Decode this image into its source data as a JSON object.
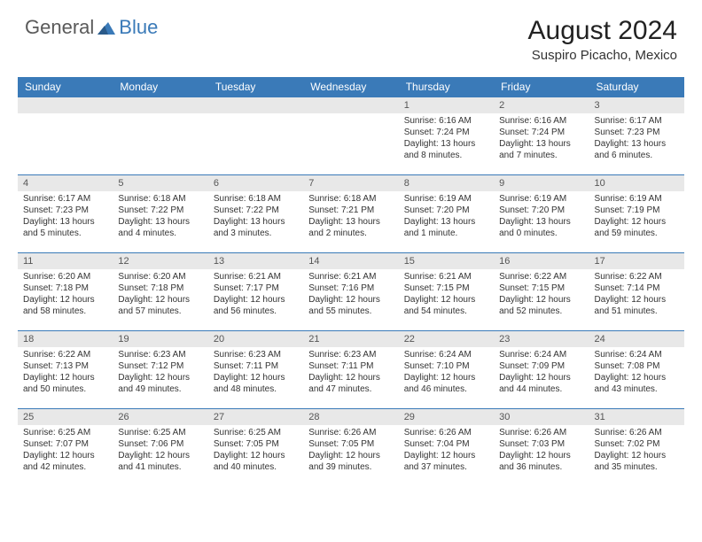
{
  "logo": {
    "text1": "General",
    "text2": "Blue"
  },
  "header": {
    "month": "August 2024",
    "location": "Suspiro Picacho, Mexico"
  },
  "colors": {
    "header_bg": "#3a7ab8",
    "header_text": "#ffffff",
    "daybar_bg": "#e8e8e8",
    "border": "#3a7ab8",
    "text": "#333333"
  },
  "weekdays": [
    "Sunday",
    "Monday",
    "Tuesday",
    "Wednesday",
    "Thursday",
    "Friday",
    "Saturday"
  ],
  "weeks": [
    [
      null,
      null,
      null,
      null,
      {
        "n": "1",
        "sr": "Sunrise: 6:16 AM",
        "ss": "Sunset: 7:24 PM",
        "dl": "Daylight: 13 hours and 8 minutes."
      },
      {
        "n": "2",
        "sr": "Sunrise: 6:16 AM",
        "ss": "Sunset: 7:24 PM",
        "dl": "Daylight: 13 hours and 7 minutes."
      },
      {
        "n": "3",
        "sr": "Sunrise: 6:17 AM",
        "ss": "Sunset: 7:23 PM",
        "dl": "Daylight: 13 hours and 6 minutes."
      }
    ],
    [
      {
        "n": "4",
        "sr": "Sunrise: 6:17 AM",
        "ss": "Sunset: 7:23 PM",
        "dl": "Daylight: 13 hours and 5 minutes."
      },
      {
        "n": "5",
        "sr": "Sunrise: 6:18 AM",
        "ss": "Sunset: 7:22 PM",
        "dl": "Daylight: 13 hours and 4 minutes."
      },
      {
        "n": "6",
        "sr": "Sunrise: 6:18 AM",
        "ss": "Sunset: 7:22 PM",
        "dl": "Daylight: 13 hours and 3 minutes."
      },
      {
        "n": "7",
        "sr": "Sunrise: 6:18 AM",
        "ss": "Sunset: 7:21 PM",
        "dl": "Daylight: 13 hours and 2 minutes."
      },
      {
        "n": "8",
        "sr": "Sunrise: 6:19 AM",
        "ss": "Sunset: 7:20 PM",
        "dl": "Daylight: 13 hours and 1 minute."
      },
      {
        "n": "9",
        "sr": "Sunrise: 6:19 AM",
        "ss": "Sunset: 7:20 PM",
        "dl": "Daylight: 13 hours and 0 minutes."
      },
      {
        "n": "10",
        "sr": "Sunrise: 6:19 AM",
        "ss": "Sunset: 7:19 PM",
        "dl": "Daylight: 12 hours and 59 minutes."
      }
    ],
    [
      {
        "n": "11",
        "sr": "Sunrise: 6:20 AM",
        "ss": "Sunset: 7:18 PM",
        "dl": "Daylight: 12 hours and 58 minutes."
      },
      {
        "n": "12",
        "sr": "Sunrise: 6:20 AM",
        "ss": "Sunset: 7:18 PM",
        "dl": "Daylight: 12 hours and 57 minutes."
      },
      {
        "n": "13",
        "sr": "Sunrise: 6:21 AM",
        "ss": "Sunset: 7:17 PM",
        "dl": "Daylight: 12 hours and 56 minutes."
      },
      {
        "n": "14",
        "sr": "Sunrise: 6:21 AM",
        "ss": "Sunset: 7:16 PM",
        "dl": "Daylight: 12 hours and 55 minutes."
      },
      {
        "n": "15",
        "sr": "Sunrise: 6:21 AM",
        "ss": "Sunset: 7:15 PM",
        "dl": "Daylight: 12 hours and 54 minutes."
      },
      {
        "n": "16",
        "sr": "Sunrise: 6:22 AM",
        "ss": "Sunset: 7:15 PM",
        "dl": "Daylight: 12 hours and 52 minutes."
      },
      {
        "n": "17",
        "sr": "Sunrise: 6:22 AM",
        "ss": "Sunset: 7:14 PM",
        "dl": "Daylight: 12 hours and 51 minutes."
      }
    ],
    [
      {
        "n": "18",
        "sr": "Sunrise: 6:22 AM",
        "ss": "Sunset: 7:13 PM",
        "dl": "Daylight: 12 hours and 50 minutes."
      },
      {
        "n": "19",
        "sr": "Sunrise: 6:23 AM",
        "ss": "Sunset: 7:12 PM",
        "dl": "Daylight: 12 hours and 49 minutes."
      },
      {
        "n": "20",
        "sr": "Sunrise: 6:23 AM",
        "ss": "Sunset: 7:11 PM",
        "dl": "Daylight: 12 hours and 48 minutes."
      },
      {
        "n": "21",
        "sr": "Sunrise: 6:23 AM",
        "ss": "Sunset: 7:11 PM",
        "dl": "Daylight: 12 hours and 47 minutes."
      },
      {
        "n": "22",
        "sr": "Sunrise: 6:24 AM",
        "ss": "Sunset: 7:10 PM",
        "dl": "Daylight: 12 hours and 46 minutes."
      },
      {
        "n": "23",
        "sr": "Sunrise: 6:24 AM",
        "ss": "Sunset: 7:09 PM",
        "dl": "Daylight: 12 hours and 44 minutes."
      },
      {
        "n": "24",
        "sr": "Sunrise: 6:24 AM",
        "ss": "Sunset: 7:08 PM",
        "dl": "Daylight: 12 hours and 43 minutes."
      }
    ],
    [
      {
        "n": "25",
        "sr": "Sunrise: 6:25 AM",
        "ss": "Sunset: 7:07 PM",
        "dl": "Daylight: 12 hours and 42 minutes."
      },
      {
        "n": "26",
        "sr": "Sunrise: 6:25 AM",
        "ss": "Sunset: 7:06 PM",
        "dl": "Daylight: 12 hours and 41 minutes."
      },
      {
        "n": "27",
        "sr": "Sunrise: 6:25 AM",
        "ss": "Sunset: 7:05 PM",
        "dl": "Daylight: 12 hours and 40 minutes."
      },
      {
        "n": "28",
        "sr": "Sunrise: 6:26 AM",
        "ss": "Sunset: 7:05 PM",
        "dl": "Daylight: 12 hours and 39 minutes."
      },
      {
        "n": "29",
        "sr": "Sunrise: 6:26 AM",
        "ss": "Sunset: 7:04 PM",
        "dl": "Daylight: 12 hours and 37 minutes."
      },
      {
        "n": "30",
        "sr": "Sunrise: 6:26 AM",
        "ss": "Sunset: 7:03 PM",
        "dl": "Daylight: 12 hours and 36 minutes."
      },
      {
        "n": "31",
        "sr": "Sunrise: 6:26 AM",
        "ss": "Sunset: 7:02 PM",
        "dl": "Daylight: 12 hours and 35 minutes."
      }
    ]
  ]
}
